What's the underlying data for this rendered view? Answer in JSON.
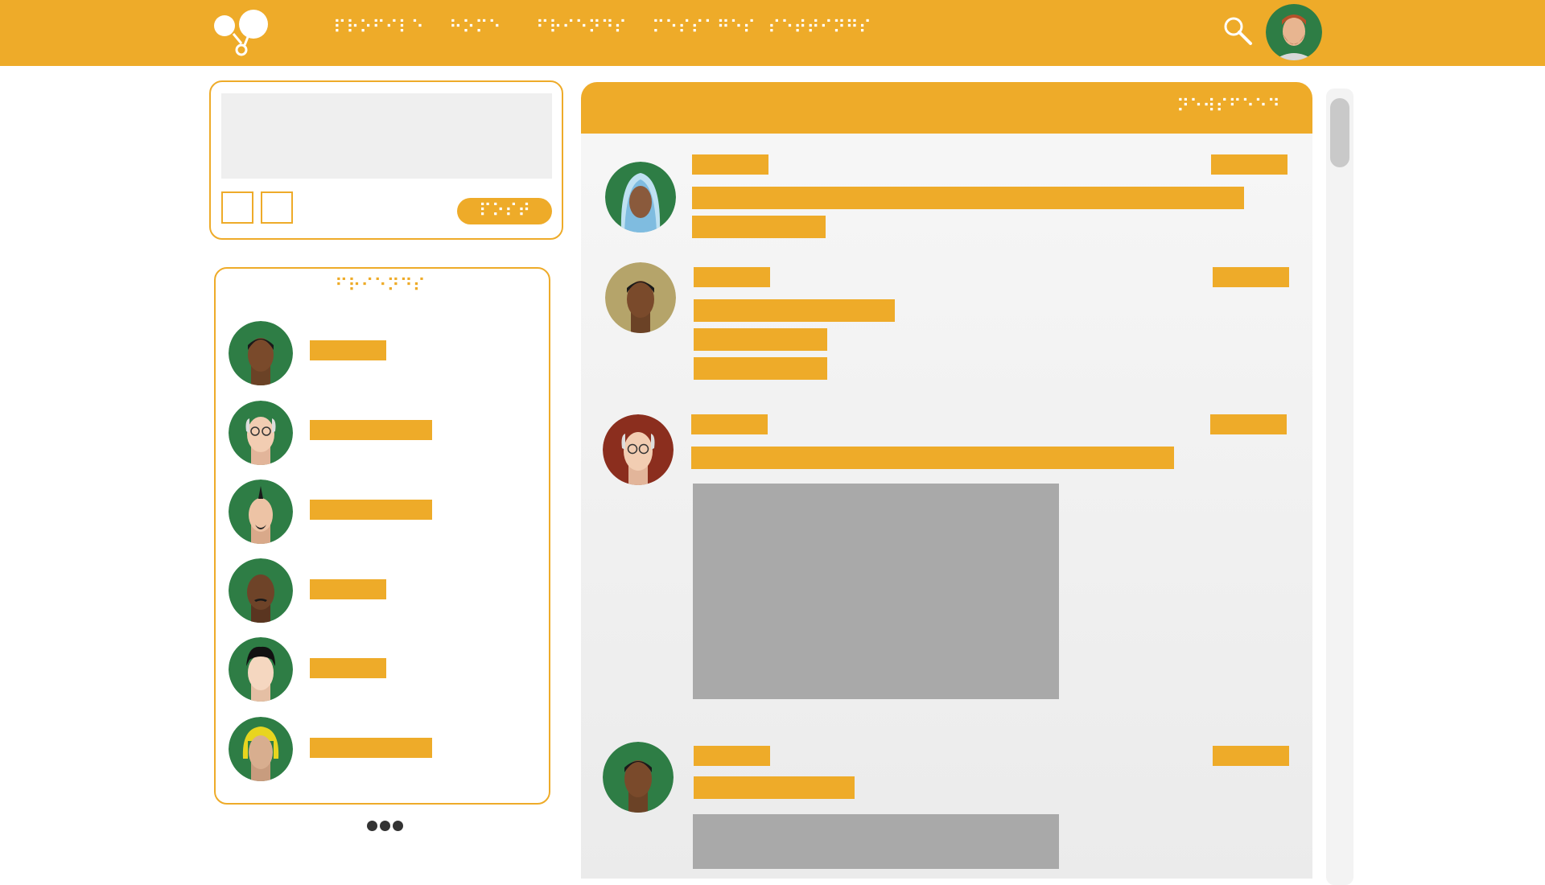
{
  "colors": {
    "accent": "#EEAB29",
    "avatar_bg": "#2E7D45",
    "placeholder": "#A9A9A9"
  },
  "nav": {
    "items": [
      {
        "label": "⠏⠗⠕⠋⠊⠇⠑"
      },
      {
        "label": "⠓⠕⠍⠑"
      },
      {
        "label": "⠋⠗⠊⠑⠝⠙⠎"
      },
      {
        "label": "⠍⠑⠎⠎⠁⠛⠑⠎"
      },
      {
        "label": "⠎⠑⠞⠞⠊⠝⠛⠎"
      }
    ],
    "search_icon": "search-icon",
    "logo_icon": "bubbles-logo-icon"
  },
  "compose": {
    "post_label": "⠏⠕⠎⠞"
  },
  "friends": {
    "title": "⠋⠗⠊⠑⠝⠙⠎"
  },
  "feed": {
    "header_label": "⠝⠑⠺⠎⠋⠑⠑⠙"
  }
}
